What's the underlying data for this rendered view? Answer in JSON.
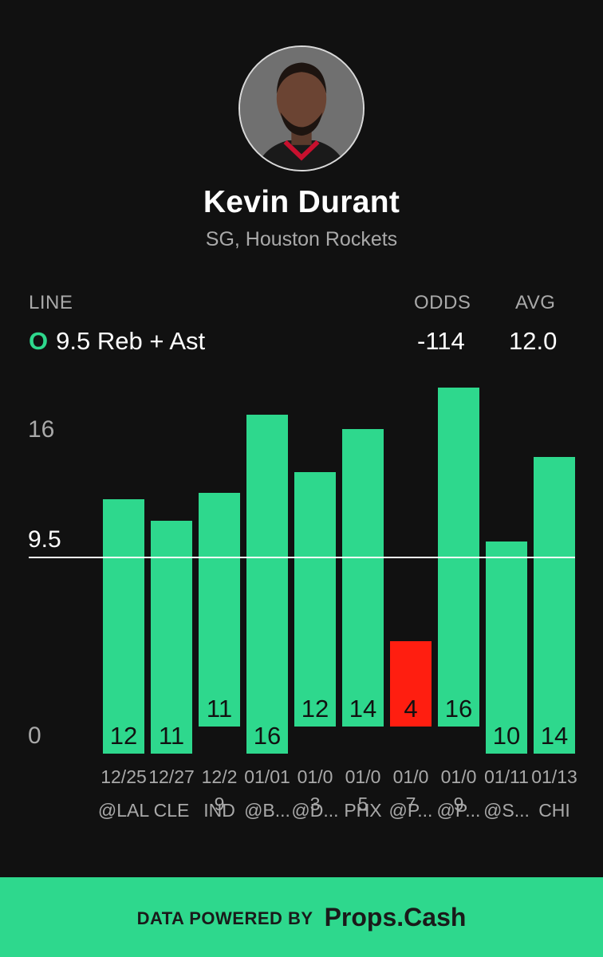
{
  "player": {
    "name": "Kevin Durant",
    "subtitle": "SG, Houston Rockets"
  },
  "header": {
    "line_label": "LINE",
    "odds_label": "ODDS",
    "avg_label": "AVG",
    "over_under": "O",
    "line_text": "9.5 Reb + Ast",
    "odds": "-114",
    "avg": "12.0"
  },
  "chart_data": {
    "type": "bar",
    "line": 9.5,
    "ylim": [
      0,
      20
    ],
    "yticks": [
      {
        "value": 16,
        "label": "16"
      },
      {
        "value": 9.5,
        "label": "9.5"
      },
      {
        "value": 0,
        "label": "0"
      }
    ],
    "categories": [
      {
        "date": [
          "12/25"
        ],
        "opp": "@LAL"
      },
      {
        "date": [
          "12/27"
        ],
        "opp": "CLE"
      },
      {
        "date": [
          "12/2",
          "9"
        ],
        "opp": "IND"
      },
      {
        "date": [
          "01/01"
        ],
        "opp": "@B..."
      },
      {
        "date": [
          "01/0",
          "3"
        ],
        "opp": "@D..."
      },
      {
        "date": [
          "01/0",
          "5"
        ],
        "opp": "PHX"
      },
      {
        "date": [
          "01/0",
          "7"
        ],
        "opp": "@P..."
      },
      {
        "date": [
          "01/0",
          "9"
        ],
        "opp": "@P..."
      },
      {
        "date": [
          "01/11"
        ],
        "opp": "@S..."
      },
      {
        "date": [
          "01/13"
        ],
        "opp": "CHI"
      }
    ],
    "values": [
      12,
      11,
      11,
      16,
      12,
      14,
      4,
      16,
      10,
      14
    ],
    "colors": {
      "over": "#2ed88d",
      "under": "#ff1e10",
      "line": "#ffffff"
    }
  },
  "footer": {
    "powered_by": "DATA POWERED BY",
    "brand": "Props.Cash"
  }
}
